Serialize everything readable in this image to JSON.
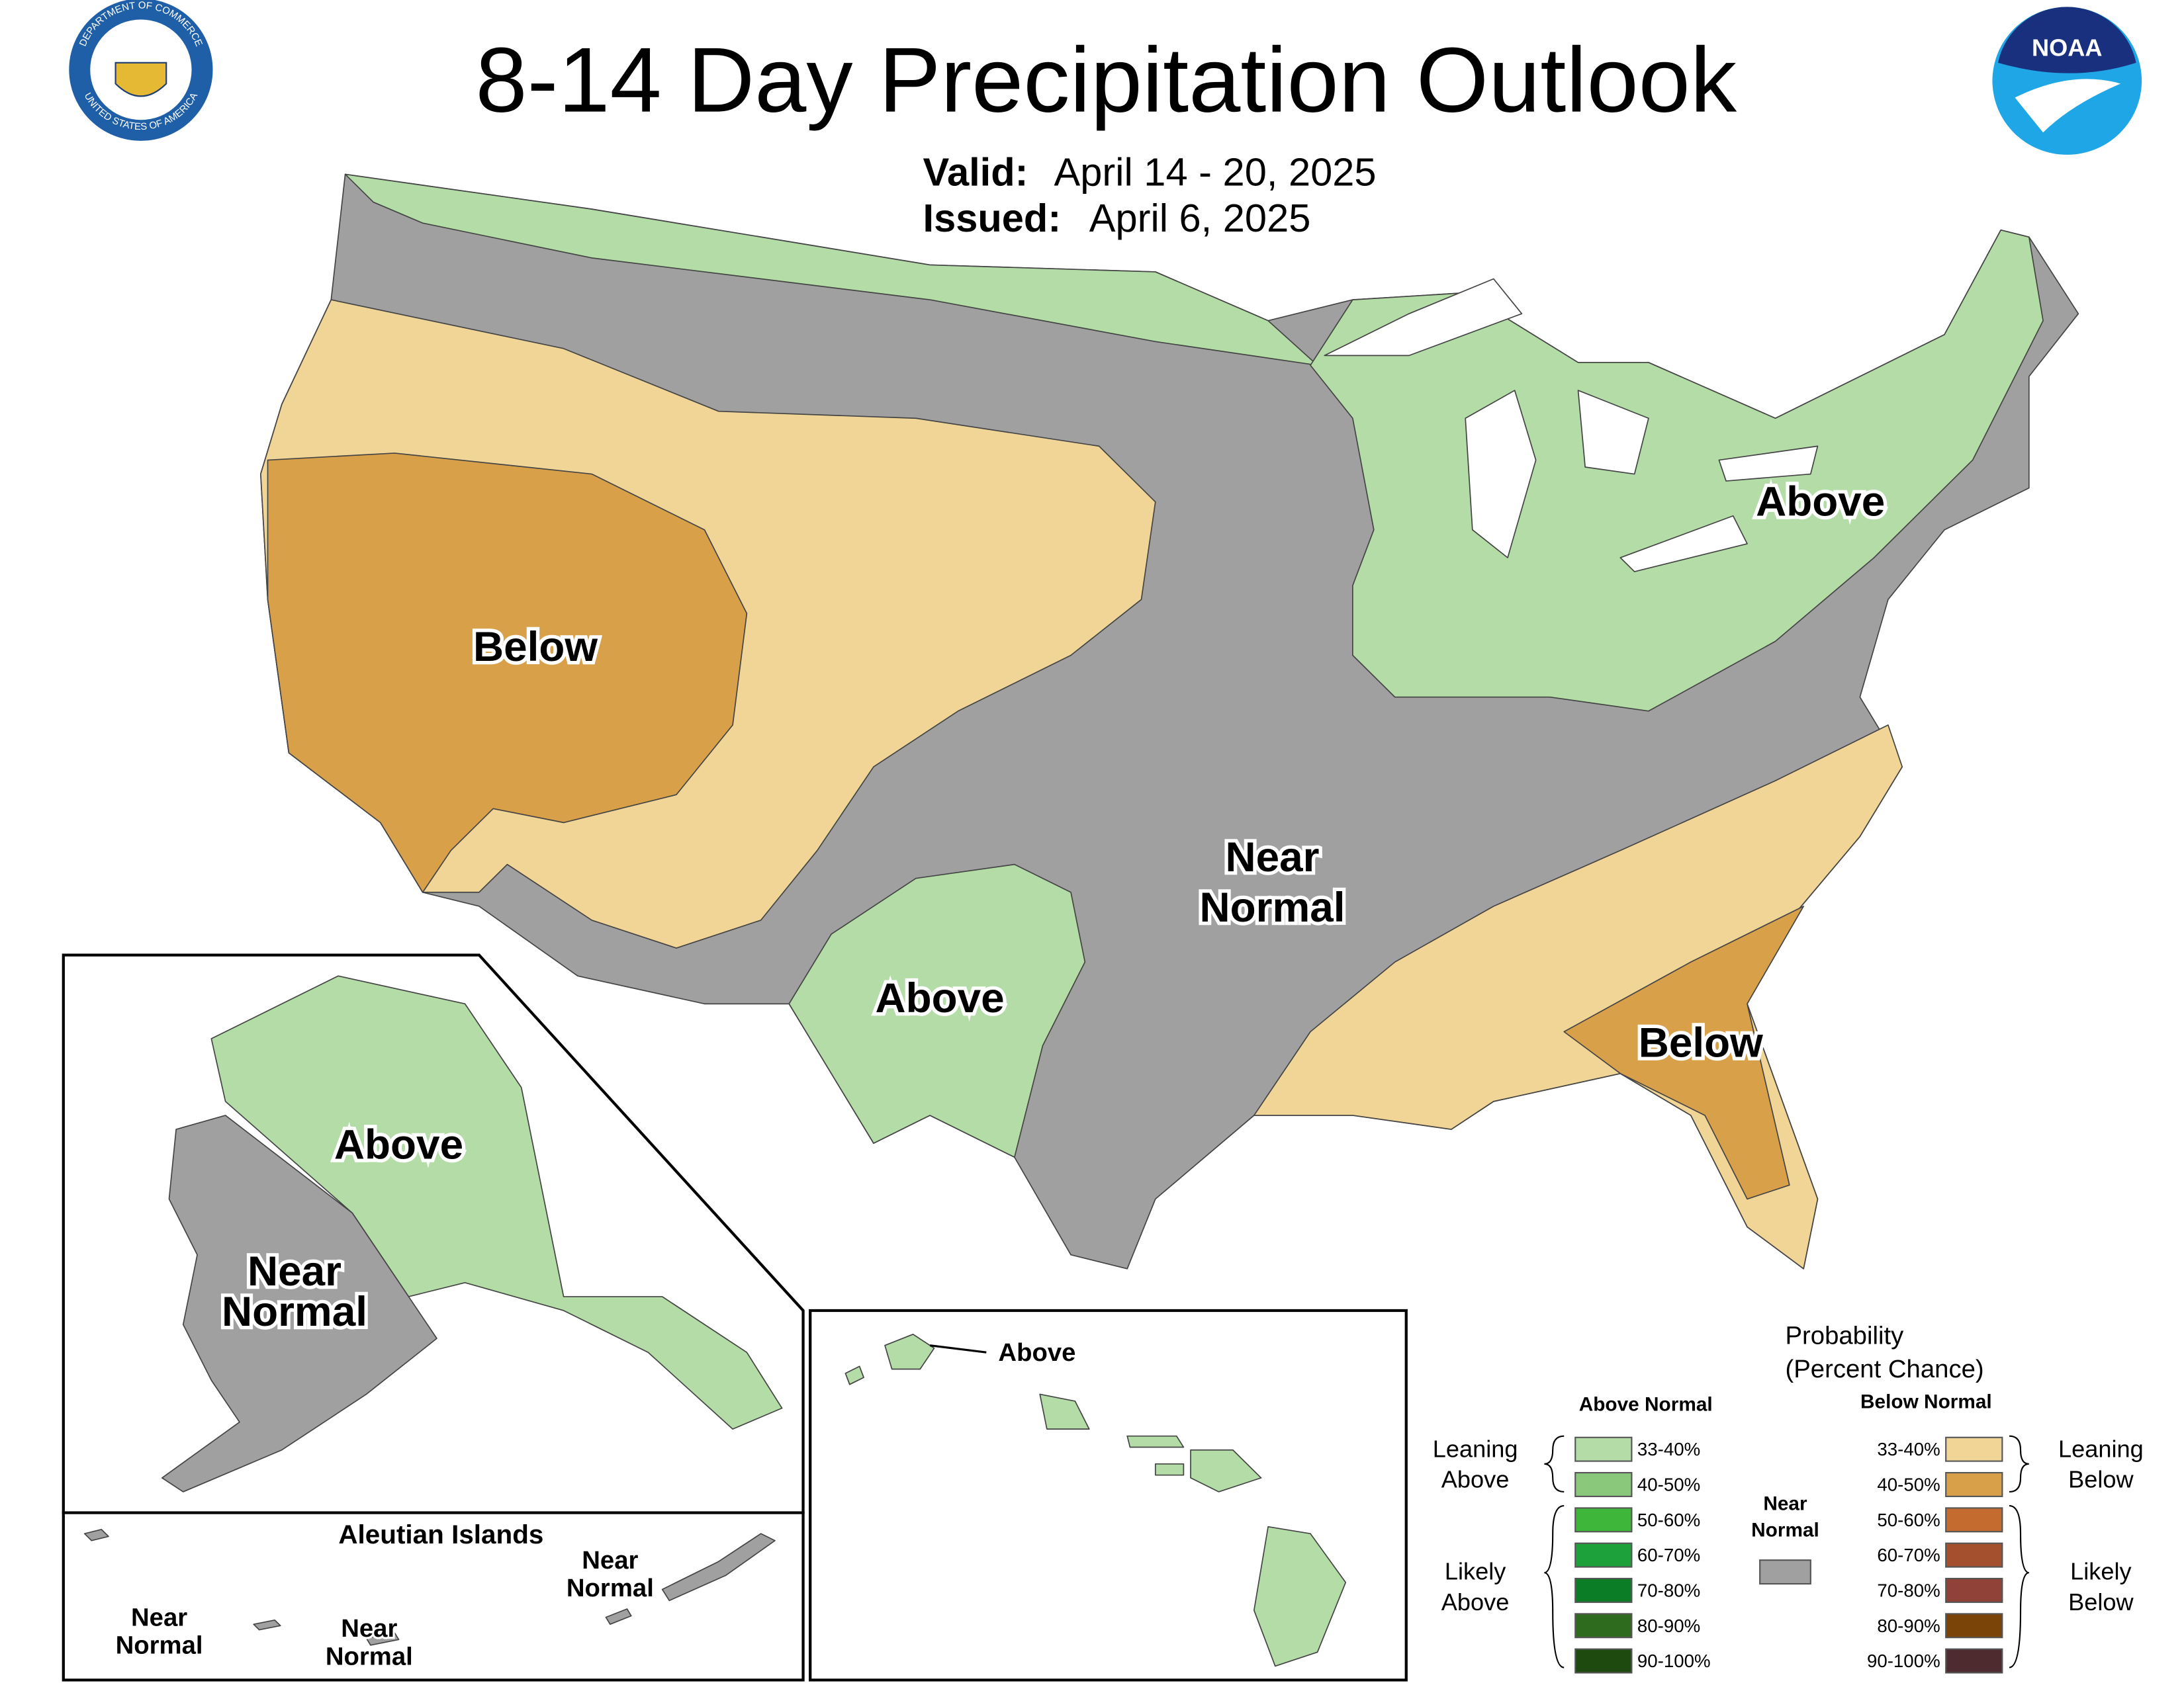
{
  "header": {
    "title": "8-14 Day Precipitation Outlook",
    "valid_label": "Valid:",
    "valid_dates": "April 14 - 20, 2025",
    "issued_label": "Issued:",
    "issued_date": "April 6, 2025"
  },
  "logos": {
    "commerce_seal": [
      "DEPARTMENT OF COMMERCE",
      "UNITED STATES OF AMERICA"
    ],
    "noaa": "NOAA"
  },
  "conus_labels": [
    [
      "Above"
    ],
    [
      "Below"
    ],
    [
      "Near",
      "Normal"
    ],
    [
      "Above"
    ],
    [
      "Below"
    ]
  ],
  "alaska": {
    "labels": [
      [
        "Above"
      ],
      [
        "Near",
        "Normal"
      ]
    ]
  },
  "aleutians": {
    "title": "Aleutian Islands",
    "labels": [
      [
        "Near",
        "Normal"
      ],
      [
        "Near",
        "Normal"
      ],
      [
        "Near",
        "Normal"
      ]
    ]
  },
  "hawaii": {
    "labels": [
      [
        "Above"
      ]
    ]
  },
  "legend": {
    "title": [
      "Probability",
      "(Percent Chance)"
    ],
    "above_heading": "Above Normal",
    "below_heading": "Below Normal",
    "above": [
      {
        "range": "33-40%",
        "color": "#b3dca7"
      },
      {
        "range": "40-50%",
        "color": "#8ac87c"
      },
      {
        "range": "50-60%",
        "color": "#3db63a"
      },
      {
        "range": "60-70%",
        "color": "#1da13a"
      },
      {
        "range": "70-80%",
        "color": "#0a7d26"
      },
      {
        "range": "80-90%",
        "color": "#2f6b1e"
      },
      {
        "range": "90-100%",
        "color": "#1f4a0f"
      }
    ],
    "below": [
      {
        "range": "33-40%",
        "color": "#f0d597"
      },
      {
        "range": "40-50%",
        "color": "#d9a04a"
      },
      {
        "range": "50-60%",
        "color": "#c46b30"
      },
      {
        "range": "60-70%",
        "color": "#a4502f"
      },
      {
        "range": "70-80%",
        "color": "#904238"
      },
      {
        "range": "80-90%",
        "color": "#7a4307"
      },
      {
        "range": "90-100%",
        "color": "#4e2b2e"
      }
    ],
    "near_normal": {
      "lines": [
        "Near",
        "Normal"
      ],
      "color": "#a0a0a0"
    },
    "groups": {
      "leaning_above": [
        "Leaning",
        "Above"
      ],
      "likely_above": [
        "Likely",
        "Above"
      ],
      "leaning_below": [
        "Leaning",
        "Below"
      ],
      "likely_below": [
        "Likely",
        "Below"
      ]
    }
  }
}
